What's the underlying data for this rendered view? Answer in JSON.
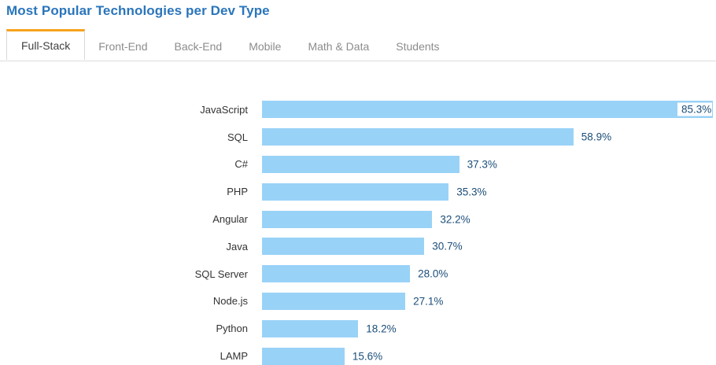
{
  "page": {
    "title": "Most Popular Technologies per Dev Type"
  },
  "tabs": {
    "items": [
      {
        "label": "Full-Stack",
        "active": true
      },
      {
        "label": "Front-End",
        "active": false
      },
      {
        "label": "Back-End",
        "active": false
      },
      {
        "label": "Mobile",
        "active": false
      },
      {
        "label": "Math & Data",
        "active": false
      },
      {
        "label": "Students",
        "active": false
      }
    ]
  },
  "colors": {
    "title_text": "#2a75bb",
    "active_tab_accent": "#f7a21b",
    "tab_inactive_text": "#8c8c8c",
    "tab_active_text": "#404040",
    "tab_border": "#d9d9d9",
    "bar_fill": "#99d2f7",
    "value_label_text": "#1b4e79",
    "category_label_text": "#333333"
  },
  "chart_data": {
    "type": "bar",
    "orientation": "horizontal",
    "title": "Most Popular Technologies per Dev Type",
    "active_series": "Full-Stack",
    "categories": [
      "JavaScript",
      "SQL",
      "C#",
      "PHP",
      "Angular",
      "Java",
      "SQL Server",
      "Node.js",
      "Python",
      "LAMP"
    ],
    "values": [
      85.3,
      58.9,
      37.3,
      35.3,
      32.2,
      30.7,
      28.0,
      27.1,
      18.2,
      15.6
    ],
    "value_labels": [
      "85.3%",
      "58.9%",
      "37.3%",
      "35.3%",
      "32.2%",
      "30.7%",
      "28.0%",
      "27.1%",
      "18.2%",
      "15.6%"
    ],
    "unit": "%",
    "xlim": [
      0,
      100
    ],
    "grid": false,
    "legend": false,
    "axes_visible": false
  }
}
